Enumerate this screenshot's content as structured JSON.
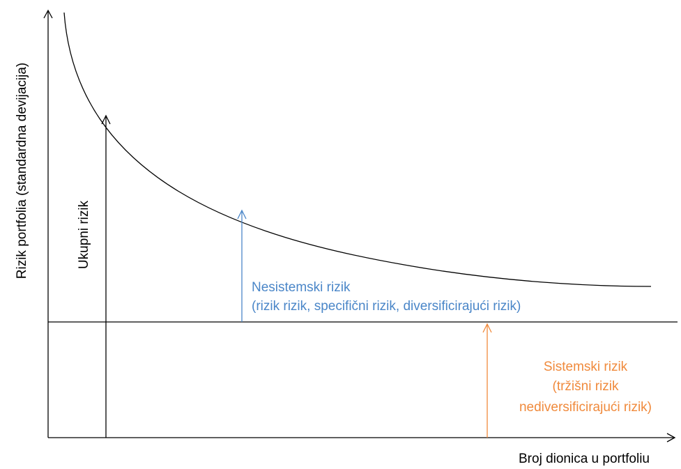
{
  "axes": {
    "y_label": "Rizik portfolia (standardna devijacija)",
    "x_label": "Broj dionica u  portfoliu"
  },
  "annotations": {
    "total_risk": {
      "label": "Ukupni rizik"
    },
    "unsystematic_risk": {
      "line1": "Nesistemski rizik",
      "line2": "(rizik rizik, specifični rizik, diversificirajući rizik)",
      "color": "#4a86c8"
    },
    "systematic_risk": {
      "line1": "Sistemski rizik",
      "line2": "(tržišni rizik",
      "line3": "nediversificirajući  rizik)",
      "color": "#f08a3c"
    }
  },
  "colors": {
    "axis": "#000000",
    "curve": "#000000"
  }
}
